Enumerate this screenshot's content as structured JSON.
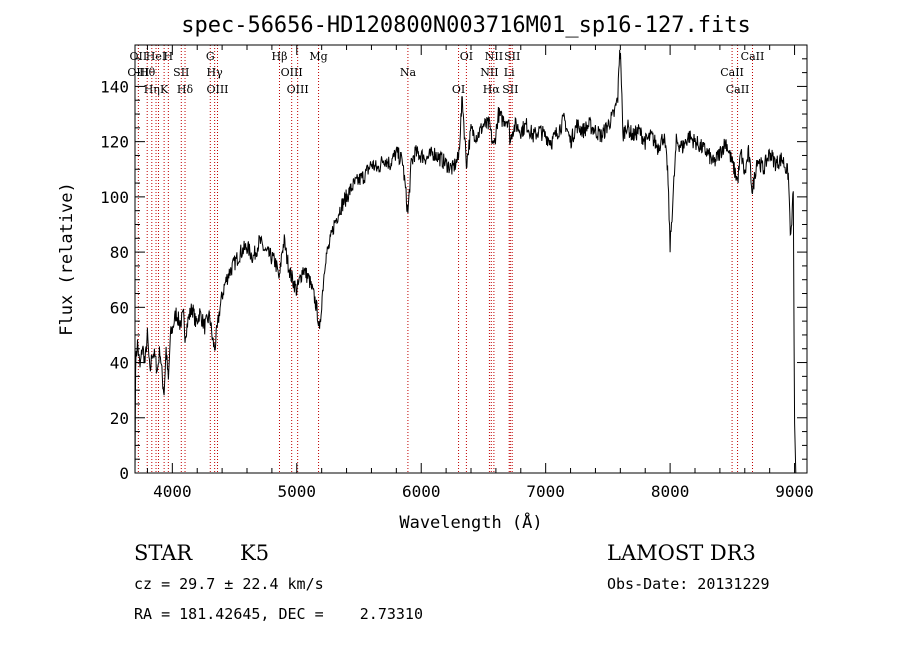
{
  "chart_data": {
    "type": "line",
    "title": "spec-56656-HD120800N003716M01_sp16-127.fits",
    "xlabel": "Wavelength (Å)",
    "ylabel": "Flux (relative)",
    "xlim": [
      3700,
      9100
    ],
    "ylim": [
      0,
      155
    ],
    "xticks": [
      4000,
      5000,
      6000,
      7000,
      8000,
      9000
    ],
    "yticks": [
      0,
      20,
      40,
      60,
      80,
      100,
      120,
      140
    ],
    "grid": false,
    "series": [
      {
        "x": [
          3700,
          3705,
          3720,
          3740,
          3760,
          3780,
          3800,
          3820,
          3840,
          3860,
          3880,
          3900,
          3920,
          3934,
          3950,
          3968,
          3985,
          4000,
          4030,
          4060,
          4090,
          4102,
          4130,
          4160,
          4190,
          4220,
          4260,
          4300,
          4320,
          4340,
          4361,
          4380,
          4400,
          4420,
          4450,
          4500,
          4550,
          4600,
          4650,
          4700,
          4750,
          4800,
          4830,
          4861,
          4880,
          4900,
          4920,
          4950,
          5000,
          5050,
          5100,
          5150,
          5170,
          5183,
          5200,
          5230,
          5260,
          5300,
          5350,
          5400,
          5450,
          5500,
          5550,
          5600,
          5650,
          5700,
          5750,
          5800,
          5850,
          5893,
          5920,
          5950,
          6000,
          6050,
          6100,
          6150,
          6200,
          6250,
          6300,
          6330,
          6363,
          6400,
          6450,
          6500,
          6550,
          6563,
          6584,
          6620,
          6650,
          6700,
          6716,
          6731,
          6760,
          6800,
          6850,
          6900,
          6950,
          7000,
          7050,
          7100,
          7150,
          7200,
          7250,
          7300,
          7350,
          7400,
          7450,
          7500,
          7550,
          7580,
          7595,
          7605,
          7620,
          7650,
          7700,
          7750,
          7800,
          7850,
          7900,
          7950,
          7980,
          8000,
          8050,
          8100,
          8150,
          8200,
          8250,
          8300,
          8350,
          8400,
          8450,
          8500,
          8542,
          8570,
          8600,
          8630,
          8662,
          8700,
          8750,
          8800,
          8850,
          8900,
          8950,
          8970,
          8990,
          9000,
          9010
        ],
        "y": [
          0,
          40,
          47,
          38,
          46,
          40,
          50,
          36,
          44,
          42,
          37,
          45,
          34,
          29,
          45,
          33,
          50,
          52,
          58,
          54,
          57,
          50,
          56,
          60,
          54,
          58,
          53,
          57,
          49,
          45,
          52,
          59,
          64,
          68,
          72,
          76,
          80,
          82,
          78,
          84,
          80,
          78,
          76,
          70,
          80,
          84,
          78,
          72,
          66,
          74,
          70,
          62,
          57,
          50,
          62,
          78,
          82,
          90,
          96,
          100,
          104,
          106,
          108,
          112,
          110,
          114,
          112,
          116,
          113,
          94,
          112,
          116,
          115,
          114,
          116,
          114,
          112,
          110,
          114,
          136,
          112,
          124,
          122,
          126,
          126,
          122,
          118,
          130,
          128,
          128,
          120,
          124,
          126,
          124,
          126,
          122,
          124,
          122,
          120,
          124,
          128,
          120,
          126,
          124,
          126,
          124,
          122,
          126,
          130,
          136,
          154,
          148,
          122,
          126,
          122,
          124,
          120,
          122,
          118,
          122,
          110,
          82,
          120,
          118,
          122,
          120,
          118,
          116,
          112,
          116,
          120,
          112,
          106,
          116,
          108,
          116,
          102,
          114,
          110,
          116,
          112,
          114,
          108,
          84,
          102,
          18,
          0
        ]
      }
    ],
    "line_markers": [
      {
        "x": 3727,
        "labels": [
          "OII",
          "OIII"
        ]
      },
      {
        "x": 3798,
        "labels": [
          "Hθ"
        ]
      },
      {
        "x": 3835,
        "labels": [
          "Hη"
        ]
      },
      {
        "x": 3869,
        "labels": [
          "HeI"
        ]
      },
      {
        "x": 3889,
        "labels": []
      },
      {
        "x": 3934,
        "labels": [
          "K"
        ]
      },
      {
        "x": 3968,
        "labels": [
          "H"
        ]
      },
      {
        "x": 4072,
        "labels": [
          "SII"
        ]
      },
      {
        "x": 4102,
        "labels": [
          "Hδ"
        ]
      },
      {
        "x": 4305,
        "labels": [
          "G"
        ]
      },
      {
        "x": 4340,
        "labels": [
          "Hγ"
        ]
      },
      {
        "x": 4363,
        "labels": [
          "OIII"
        ]
      },
      {
        "x": 4861,
        "labels": [
          "Hβ"
        ]
      },
      {
        "x": 4959,
        "labels": [
          "OIII"
        ]
      },
      {
        "x": 5007,
        "labels": [
          "OIII"
        ]
      },
      {
        "x": 5175,
        "labels": [
          "Mg"
        ]
      },
      {
        "x": 5893,
        "labels": [
          "Na"
        ]
      },
      {
        "x": 6300,
        "labels": [
          "OI"
        ]
      },
      {
        "x": 6363,
        "labels": [
          "OI"
        ]
      },
      {
        "x": 6548,
        "labels": [
          "NII"
        ]
      },
      {
        "x": 6563,
        "labels": [
          "Hα"
        ]
      },
      {
        "x": 6584,
        "labels": [
          "NII"
        ]
      },
      {
        "x": 6707,
        "labels": [
          "Li"
        ]
      },
      {
        "x": 6716,
        "labels": [
          "SII"
        ]
      },
      {
        "x": 6731,
        "labels": [
          "SII"
        ]
      },
      {
        "x": 8498,
        "labels": [
          "CaII"
        ]
      },
      {
        "x": 8542,
        "labels": [
          "CaII"
        ]
      },
      {
        "x": 8662,
        "labels": [
          "CaII"
        ]
      }
    ]
  },
  "info": {
    "class": "STAR",
    "subclass": "K5",
    "survey": "LAMOST DR3",
    "cz": "cz = 29.7 ± 22.4 km/s",
    "obs_date": "Obs-Date: 20131229",
    "coords": "RA = 181.42645, DEC =    2.73310"
  },
  "colors": {
    "spectrum": "#000000",
    "line_marker": "#c00000",
    "axes": "#000000",
    "background": "#ffffff"
  }
}
